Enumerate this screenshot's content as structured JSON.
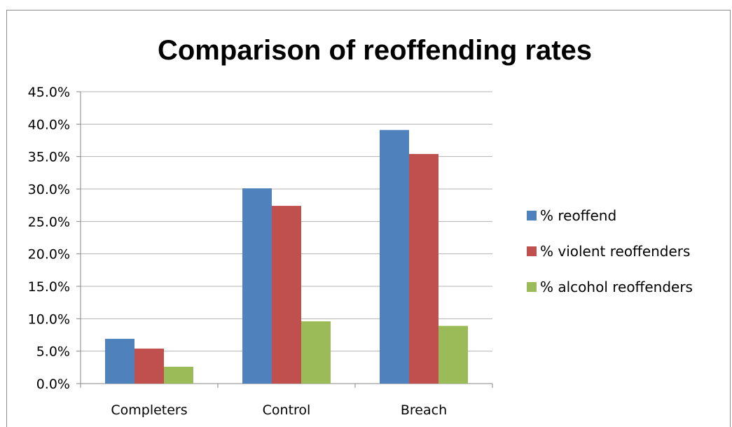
{
  "chart_data": {
    "type": "bar",
    "title": "Comparison of reoffending rates",
    "xlabel": "",
    "ylabel": "",
    "categories": [
      "Completers",
      "Control",
      "Breach"
    ],
    "series": [
      {
        "name": "% reoffend",
        "values": [
          6.9,
          30.1,
          39.1
        ]
      },
      {
        "name": "% violent reoffenders",
        "values": [
          5.4,
          27.4,
          35.4
        ]
      },
      {
        "name": "% alcohol reoffenders",
        "values": [
          2.6,
          9.6,
          8.9
        ]
      }
    ],
    "ylim": [
      0,
      45
    ],
    "yticks": [
      "0.0%",
      "5.0%",
      "10.0%",
      "15.0%",
      "20.0%",
      "25.0%",
      "30.0%",
      "35.0%",
      "40.0%",
      "45.0%"
    ],
    "grid": true,
    "legend_position": "right",
    "colors": [
      "#4f81bd",
      "#c0504d",
      "#9bbb59"
    ]
  }
}
